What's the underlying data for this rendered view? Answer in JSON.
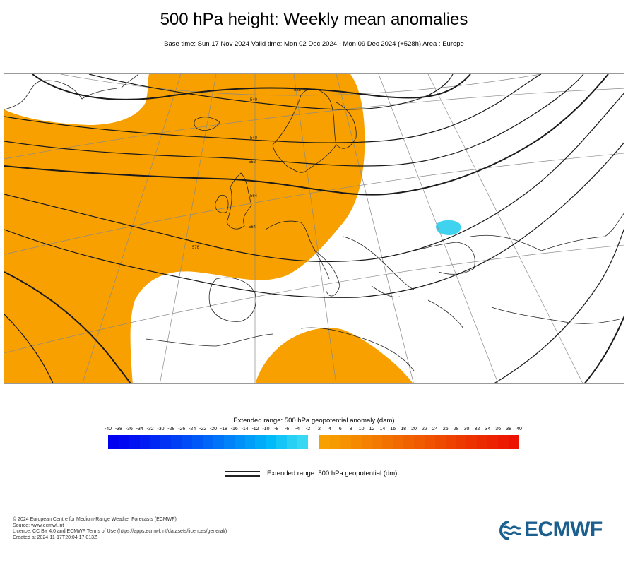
{
  "header": {
    "title": "500 hPa height: Weekly mean anomalies",
    "subtitle": "Base time: Sun 17 Nov 2024 Valid time: Mon 02 Dec 2024 - Mon 09 Dec 2024 (+528h) Area : Europe"
  },
  "map": {
    "area": "Europe",
    "contour_labels": [
      "528",
      "540",
      "540",
      "552",
      "564",
      "564",
      "576"
    ],
    "colors": {
      "positive_anomaly": "#f7a000",
      "negative_anomaly": "#3fd3f0",
      "contour": "#222222",
      "coastline": "#222222",
      "graticule": "#888888"
    }
  },
  "legend": {
    "anomaly_title": "Extended range: 500 hPa geopotential anomaly (dam)",
    "ticks": [
      "-40",
      "-38",
      "-36",
      "-34",
      "-32",
      "-30",
      "-28",
      "-26",
      "-24",
      "-22",
      "-20",
      "-18",
      "-16",
      "-14",
      "-12",
      "-10",
      "-8",
      "-6",
      "-4",
      "-2",
      "2",
      "4",
      "6",
      "8",
      "10",
      "12",
      "14",
      "16",
      "18",
      "20",
      "22",
      "24",
      "26",
      "28",
      "30",
      "32",
      "34",
      "36",
      "38",
      "40"
    ],
    "negative_colors": [
      "#0000f0",
      "#0008f1",
      "#0012f2",
      "#001cf3",
      "#0028f4",
      "#0034f4",
      "#0040f5",
      "#004cf6",
      "#0058f7",
      "#0066f7",
      "#0074f8",
      "#0082f9",
      "#0090f9",
      "#009ef9",
      "#00acf9",
      "#00baf9",
      "#14c6f7",
      "#28d0f4",
      "#38d8f2"
    ],
    "positive_colors": [
      "#f7a000",
      "#f79a00",
      "#f69200",
      "#f58a00",
      "#f48200",
      "#f37a00",
      "#f27200",
      "#f16a00",
      "#f06200",
      "#f05a00",
      "#ef5200",
      "#ee4a00",
      "#ee4200",
      "#ed3a00",
      "#ed3200",
      "#ec2a00",
      "#ec2200",
      "#eb1a00",
      "#eb1200"
    ],
    "contour_title": "Extended range: 500 hPa geopotential (dm)"
  },
  "footer": {
    "lines": [
      "© 2024 European Centre for Medium-Range Weather Forecasts (ECMWF)",
      "Source: www.ecmwf.int",
      "Licence: CC BY 4.0 and ECMWF Terms of Use (https://apps.ecmwf.int/datasets/licences/general/)",
      "Created at 2024-11-17T20:04:17.013Z"
    ]
  },
  "logo": {
    "text": "ECMWF",
    "icon": "ecmwf-wave-icon",
    "color": "#1a5f8e"
  }
}
